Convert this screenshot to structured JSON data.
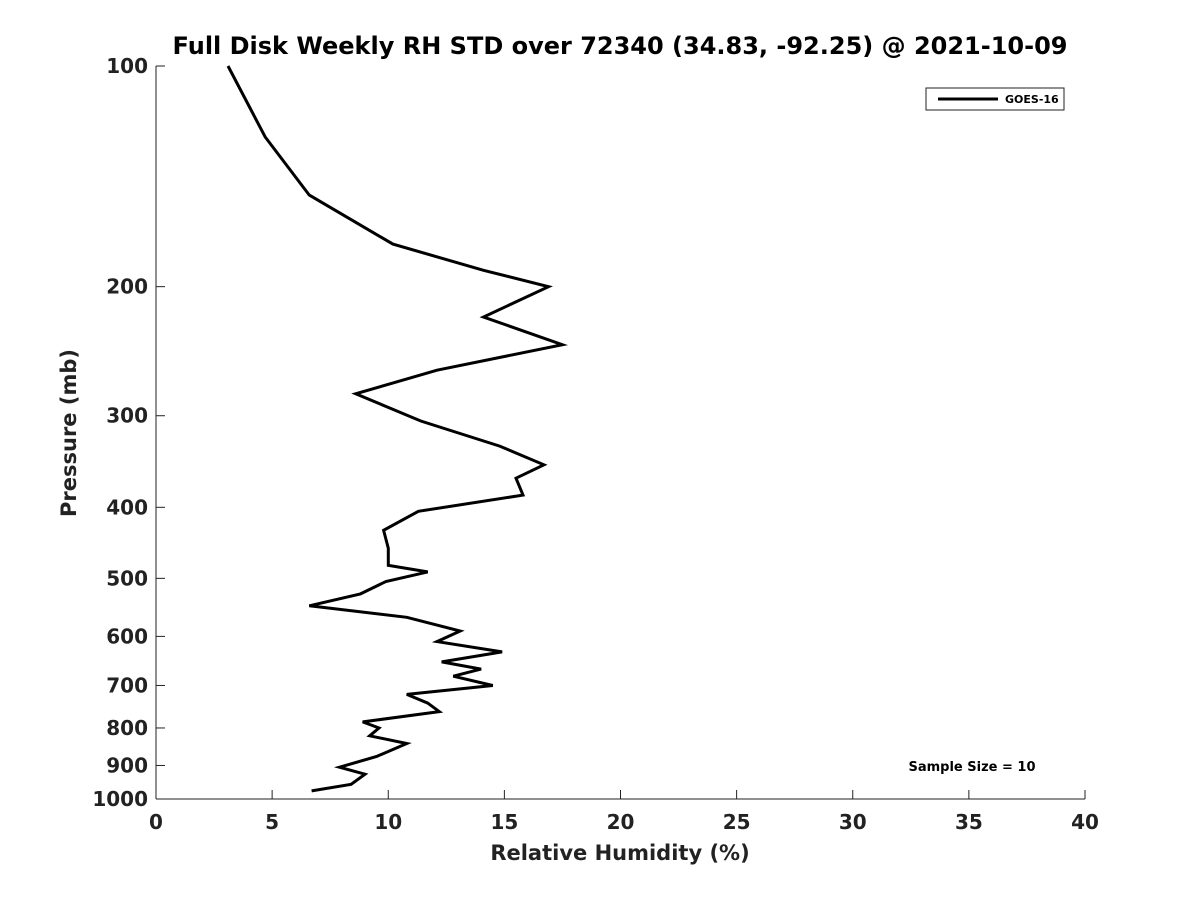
{
  "chart_data": {
    "type": "line",
    "title": "Full Disk Weekly RH STD over 72340 (34.83, -92.25) @ 2021-10-09",
    "xlabel": "Relative Humidity (%)",
    "ylabel": "Pressure (mb)",
    "xlim": [
      0,
      40
    ],
    "ylim": [
      100,
      1000
    ],
    "y_scale": "log",
    "y_reversed": true,
    "grid": false,
    "legend_position": "top-right",
    "x_ticks": [
      0,
      5,
      10,
      15,
      20,
      25,
      30,
      35,
      40
    ],
    "y_ticks": [
      100,
      200,
      300,
      400,
      500,
      600,
      700,
      800,
      900,
      1000
    ],
    "annotation": "Sample Size = 10",
    "series": [
      {
        "name": "GOES-16",
        "color": "#000000",
        "points": [
          [
            3.1,
            100
          ],
          [
            4.7,
            125
          ],
          [
            6.6,
            150
          ],
          [
            10.2,
            175
          ],
          [
            14.1,
            190
          ],
          [
            16.9,
            200
          ],
          [
            14.1,
            220
          ],
          [
            17.5,
            240
          ],
          [
            12.1,
            260
          ],
          [
            8.6,
            280
          ],
          [
            11.4,
            305
          ],
          [
            14.8,
            330
          ],
          [
            16.7,
            350
          ],
          [
            15.5,
            365
          ],
          [
            15.8,
            385
          ],
          [
            11.3,
            405
          ],
          [
            9.8,
            430
          ],
          [
            10.0,
            455
          ],
          [
            10.0,
            480
          ],
          [
            11.7,
            490
          ],
          [
            9.9,
            505
          ],
          [
            8.8,
            525
          ],
          [
            6.6,
            545
          ],
          [
            10.8,
            565
          ],
          [
            13.1,
            590
          ],
          [
            12.1,
            610
          ],
          [
            14.9,
            630
          ],
          [
            12.3,
            650
          ],
          [
            14.0,
            665
          ],
          [
            12.8,
            680
          ],
          [
            14.5,
            700
          ],
          [
            10.8,
            720
          ],
          [
            11.7,
            740
          ],
          [
            12.2,
            760
          ],
          [
            8.9,
            785
          ],
          [
            9.6,
            800
          ],
          [
            9.2,
            820
          ],
          [
            10.8,
            840
          ],
          [
            9.5,
            875
          ],
          [
            7.9,
            905
          ],
          [
            9.0,
            925
          ],
          [
            8.4,
            955
          ],
          [
            6.7,
            975
          ]
        ]
      }
    ]
  }
}
